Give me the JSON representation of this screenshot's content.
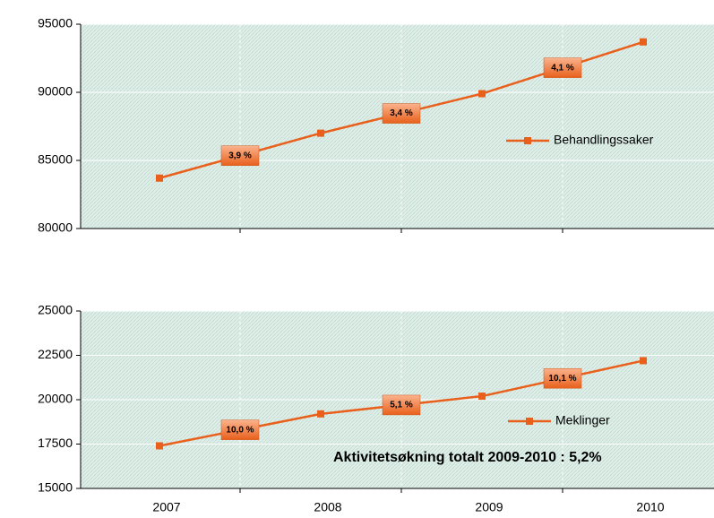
{
  "chart_data": [
    {
      "type": "line",
      "series": [
        {
          "name": "Behandlingssaker",
          "color": "#e8601c",
          "values": [
            83700,
            87000,
            89900,
            93700
          ]
        }
      ],
      "annotations": [
        "3,9 %",
        "3,4 %",
        "4,1 %"
      ],
      "ylim": [
        80000,
        95000
      ],
      "yticks": [
        80000,
        85000,
        90000,
        95000
      ],
      "grid": true,
      "legend": "right"
    },
    {
      "type": "line",
      "categories": [
        "2007",
        "2008",
        "2009",
        "2010"
      ],
      "series": [
        {
          "name": "Meklinger",
          "color": "#e8601c",
          "values": [
            17400,
            19200,
            20200,
            22200
          ]
        }
      ],
      "annotations": [
        "10,0 %",
        "5,1 %",
        "10,1 %"
      ],
      "note": "Aktivitetsøkning totalt 2009-2010 :  5,2%",
      "ylim": [
        15000,
        25000
      ],
      "yticks": [
        15000,
        17500,
        20000,
        22500,
        25000
      ],
      "grid": true,
      "legend": "right"
    }
  ]
}
